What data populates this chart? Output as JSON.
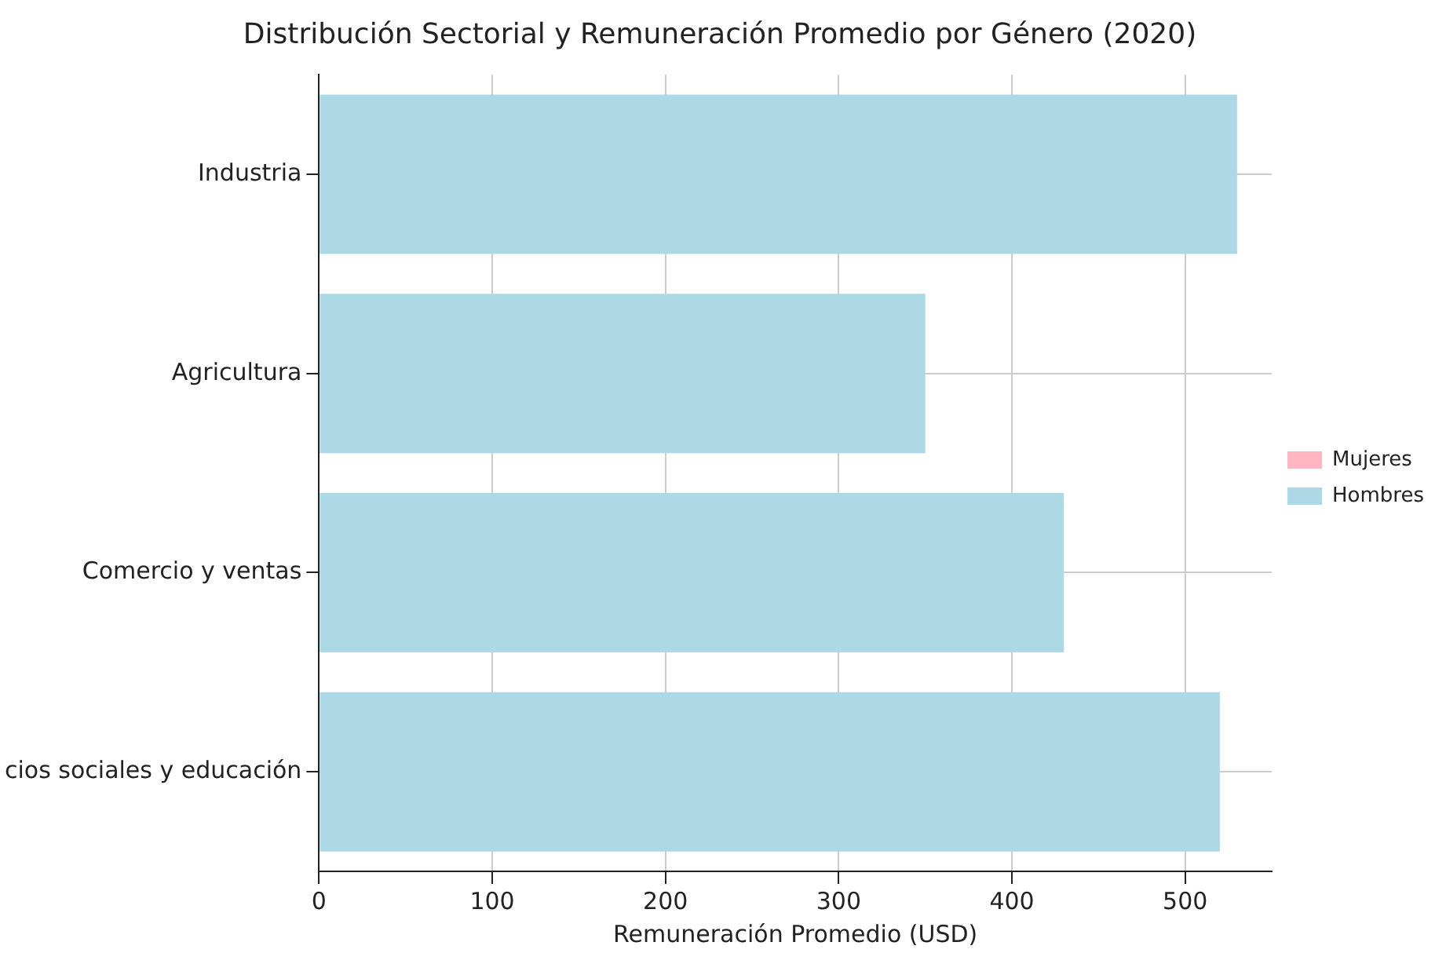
{
  "chart_data": {
    "type": "bar",
    "orientation": "horizontal",
    "title": "Distribución Sectorial y Remuneración Promedio por Género (2020)",
    "xlabel": "Remuneración Promedio (USD)",
    "categories": [
      "Industria",
      "Agricultura",
      "Comercio y ventas",
      "cios sociales y educación"
    ],
    "series": [
      {
        "name": "Mujeres",
        "color": "#ffb6c1",
        "values": [
          null,
          null,
          null,
          null
        ]
      },
      {
        "name": "Hombres",
        "color": "#add8e6",
        "values": [
          530,
          350,
          430,
          520
        ]
      }
    ],
    "xlim": [
      0,
      550
    ],
    "xticks": [
      0,
      100,
      200,
      300,
      400,
      500
    ],
    "grid": true,
    "legend": "center right"
  }
}
